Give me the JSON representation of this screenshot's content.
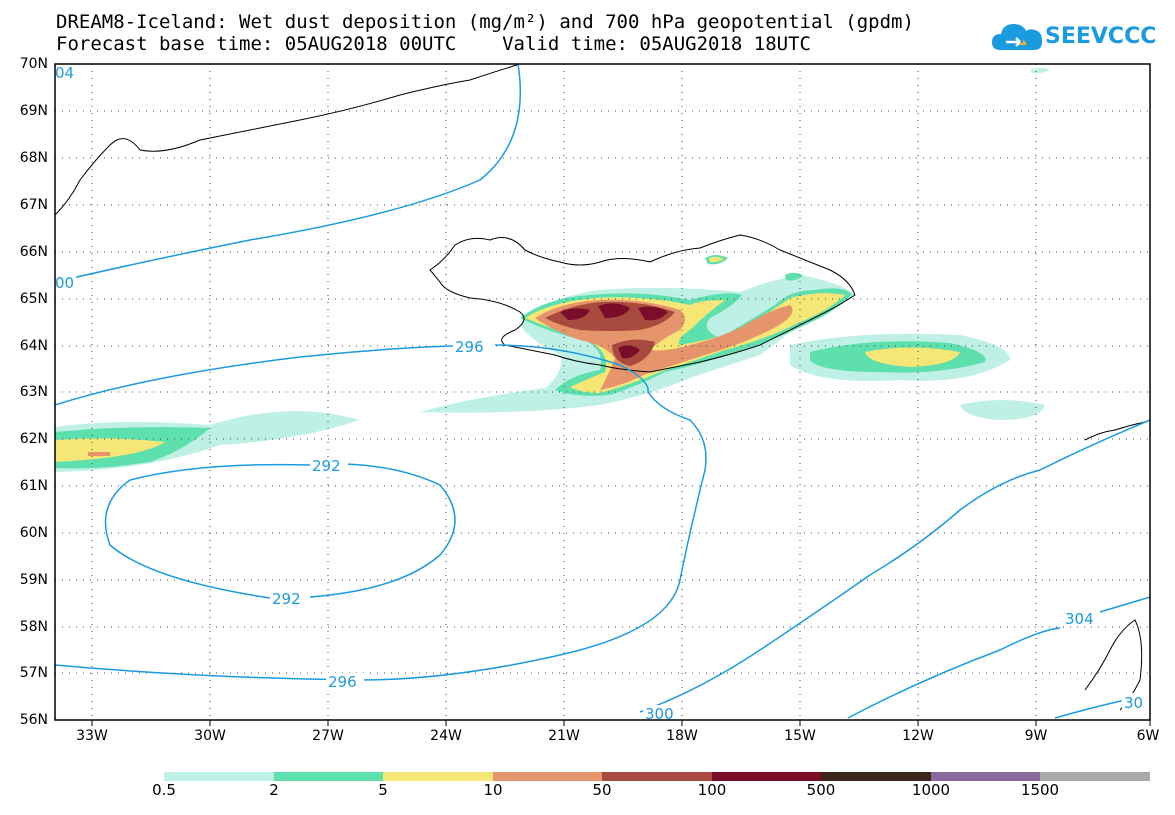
{
  "header": {
    "title_line1": "DREAM8-Iceland: Wet dust deposition (mg/m²) and 700 hPa geopotential (gpdm)",
    "title_line2": "Forecast base time: 05AUG2018 00UTC    Valid time: 05AUG2018 18UTC"
  },
  "logo": {
    "text": "SEEVCCC",
    "icon": "cloud-icon",
    "color": "#1a9be0"
  },
  "axes": {
    "lat_labels": [
      "70N",
      "69N",
      "68N",
      "67N",
      "66N",
      "65N",
      "64N",
      "63N",
      "62N",
      "61N",
      "60N",
      "59N",
      "58N",
      "57N",
      "56N"
    ],
    "lon_labels": [
      "33W",
      "30W",
      "27W",
      "24W",
      "21W",
      "18W",
      "15W",
      "12W",
      "9W",
      "6W"
    ]
  },
  "contours": {
    "color": "#1a9be0",
    "labels": [
      "04",
      "00",
      "296",
      "292",
      "292",
      "296",
      "300",
      "304",
      "30"
    ]
  },
  "colorbar": {
    "labels": [
      "0.5",
      "2",
      "5",
      "10",
      "50",
      "100",
      "500",
      "1000",
      "1500"
    ],
    "colors": [
      "#bff0e6",
      "#5ddfae",
      "#f5e675",
      "#e6946c",
      "#a84a3e",
      "#7a0d2a",
      "#3a2518",
      "#8a6a9e",
      "#a9a9a9"
    ]
  }
}
